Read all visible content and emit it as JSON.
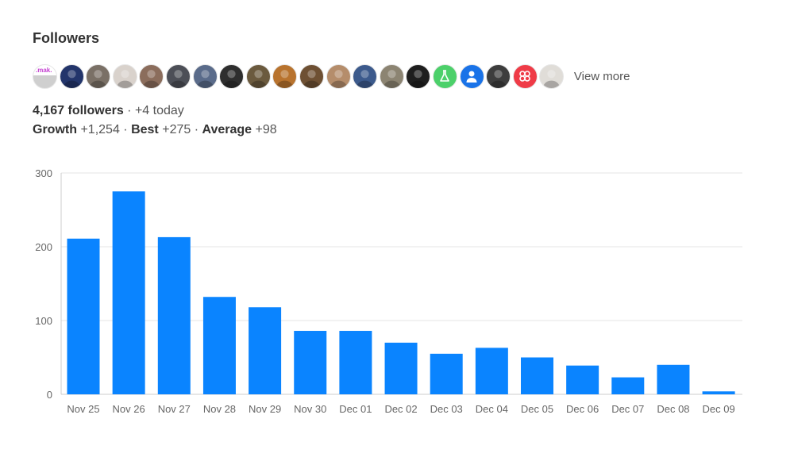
{
  "followers_title": "Followers",
  "avatars": [
    {
      "name": "avatar-mak",
      "label": ".mak.",
      "bg": "#cfcfcf"
    },
    {
      "name": "avatar-blue-burst",
      "bg": "#23356b"
    },
    {
      "name": "avatar-bearded-man",
      "bg": "#7a7066"
    },
    {
      "name": "avatar-smiling-man",
      "bg": "#d9d2cc"
    },
    {
      "name": "avatar-group-photo",
      "bg": "#8b6d5c"
    },
    {
      "name": "avatar-landscape",
      "bg": "#4c4f57"
    },
    {
      "name": "avatar-suit-man",
      "bg": "#5a6b8a"
    },
    {
      "name": "avatar-dark-suit",
      "bg": "#2e2e2e"
    },
    {
      "name": "avatar-earth-tone",
      "bg": "#6b5a3e"
    },
    {
      "name": "avatar-colorful",
      "bg": "#b8732e"
    },
    {
      "name": "avatar-room",
      "bg": "#6e5033"
    },
    {
      "name": "avatar-woman",
      "bg": "#b58d6b"
    },
    {
      "name": "avatar-man-blue",
      "bg": "#3c5a8c"
    },
    {
      "name": "avatar-street",
      "bg": "#8c8472"
    },
    {
      "name": "avatar-dark",
      "bg": "#1e1e1e"
    },
    {
      "name": "avatar-flask",
      "bg": "#4cd06a",
      "icon": "flask-icon"
    },
    {
      "name": "avatar-default",
      "bg": "#1a73e8",
      "icon": "person-icon"
    },
    {
      "name": "avatar-bw-portrait",
      "bg": "#3d3d3d"
    },
    {
      "name": "avatar-red-logo",
      "bg": "#ef3b47",
      "icon": "knot-logo-icon"
    },
    {
      "name": "avatar-glasses-man",
      "bg": "#e0ddd8"
    }
  ],
  "view_more": "View more",
  "followers_count": "4,167 followers",
  "today_text": "· +4 today",
  "growth_label": "Growth",
  "growth_value": "+1,254",
  "sep1": "·",
  "best_label": "Best",
  "best_value": "+275",
  "sep2": "·",
  "average_label": "Average",
  "average_value": "+98",
  "colors": {
    "bar": "#0a84ff",
    "grid": "#e5e5e5",
    "tick_text": "#666666"
  },
  "chart_data": {
    "type": "bar",
    "categories": [
      "Nov 25",
      "Nov 26",
      "Nov 27",
      "Nov 28",
      "Nov 29",
      "Nov 30",
      "Dec 01",
      "Dec 02",
      "Dec 03",
      "Dec 04",
      "Dec 05",
      "Dec 06",
      "Dec 07",
      "Dec 08",
      "Dec 09"
    ],
    "values": [
      211,
      275,
      213,
      132,
      118,
      86,
      86,
      70,
      55,
      63,
      50,
      39,
      23,
      40,
      4
    ],
    "ylim": [
      0,
      300
    ],
    "yticks": [
      0,
      100,
      200,
      300
    ],
    "title": "",
    "xlabel": "",
    "ylabel": "",
    "grid": true
  }
}
